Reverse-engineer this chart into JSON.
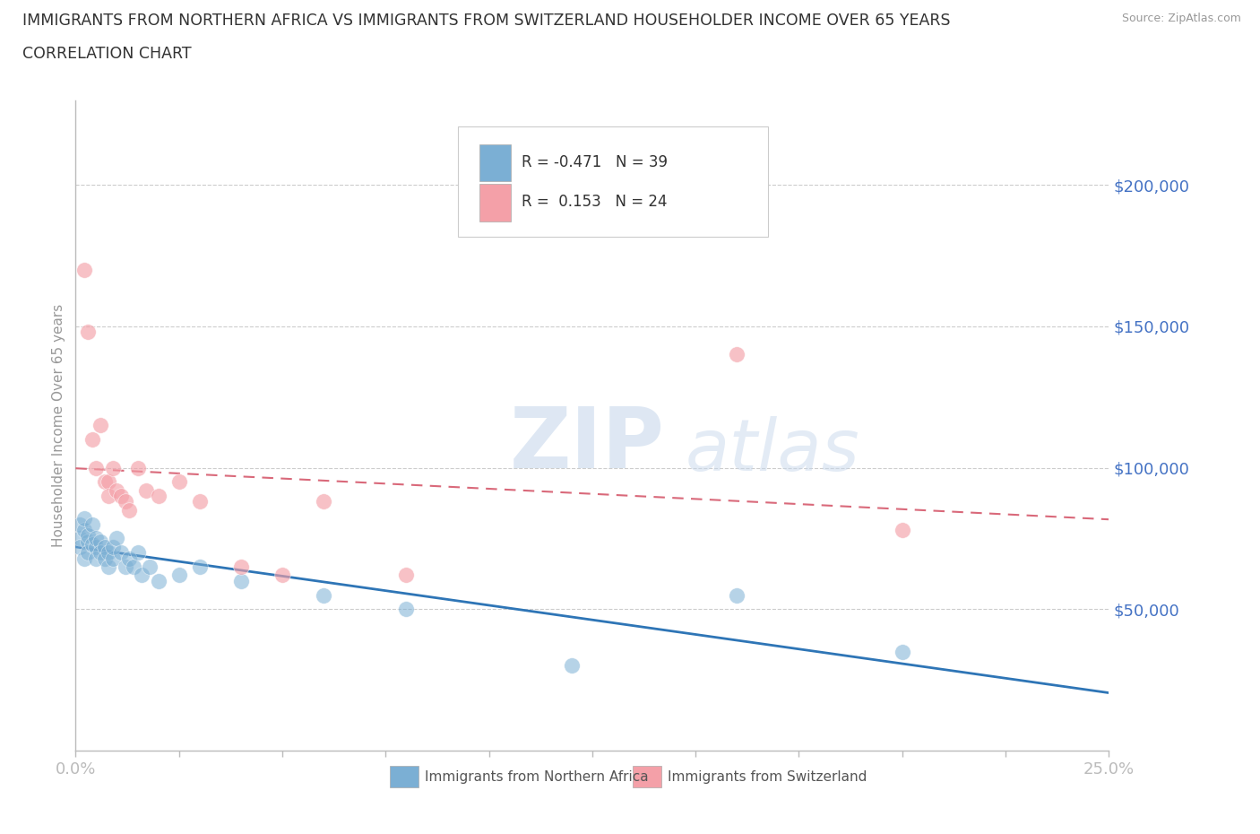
{
  "title_line1": "IMMIGRANTS FROM NORTHERN AFRICA VS IMMIGRANTS FROM SWITZERLAND HOUSEHOLDER INCOME OVER 65 YEARS",
  "title_line2": "CORRELATION CHART",
  "source_text": "Source: ZipAtlas.com",
  "ylabel": "Householder Income Over 65 years",
  "xlim": [
    0.0,
    0.25
  ],
  "ylim": [
    0,
    230000
  ],
  "ytick_values": [
    50000,
    100000,
    150000,
    200000
  ],
  "ytick_labels": [
    "$50,000",
    "$100,000",
    "$150,000",
    "$200,000"
  ],
  "color_blue": "#7BAFD4",
  "color_pink": "#F4A0A8",
  "color_trendline_blue": "#2E75B6",
  "color_trendline_pink": "#D9697A",
  "color_axis": "#BBBBBB",
  "color_grid": "#CCCCCC",
  "color_ylabel": "#999999",
  "color_yticklabels": "#4472C4",
  "color_xticklabels": "#4472C4",
  "watermark_zip": "ZIP",
  "watermark_atlas": "atlas",
  "north_africa_x": [
    0.001,
    0.001,
    0.001,
    0.002,
    0.002,
    0.002,
    0.003,
    0.003,
    0.003,
    0.004,
    0.004,
    0.005,
    0.005,
    0.005,
    0.006,
    0.006,
    0.007,
    0.007,
    0.008,
    0.008,
    0.009,
    0.009,
    0.01,
    0.011,
    0.012,
    0.013,
    0.014,
    0.015,
    0.016,
    0.018,
    0.02,
    0.025,
    0.03,
    0.04,
    0.06,
    0.08,
    0.12,
    0.16,
    0.2
  ],
  "north_africa_y": [
    75000,
    80000,
    72000,
    78000,
    68000,
    82000,
    74000,
    76000,
    70000,
    80000,
    73000,
    72000,
    75000,
    68000,
    74000,
    70000,
    72000,
    68000,
    65000,
    70000,
    68000,
    72000,
    75000,
    70000,
    65000,
    68000,
    65000,
    70000,
    62000,
    65000,
    60000,
    62000,
    65000,
    60000,
    55000,
    50000,
    30000,
    55000,
    35000
  ],
  "switzerland_x": [
    0.002,
    0.003,
    0.004,
    0.005,
    0.006,
    0.007,
    0.008,
    0.008,
    0.009,
    0.01,
    0.011,
    0.012,
    0.013,
    0.015,
    0.017,
    0.02,
    0.025,
    0.03,
    0.04,
    0.05,
    0.06,
    0.08,
    0.16,
    0.2
  ],
  "switzerland_y": [
    170000,
    148000,
    110000,
    100000,
    115000,
    95000,
    95000,
    90000,
    100000,
    92000,
    90000,
    88000,
    85000,
    100000,
    92000,
    90000,
    95000,
    88000,
    65000,
    62000,
    88000,
    62000,
    140000,
    78000
  ],
  "legend_text_r1": "R = -0.471   N = 39",
  "legend_text_r2": "R =  0.153   N = 24",
  "bottom_legend_blue": "Immigrants from Northern Africa",
  "bottom_legend_pink": "Immigrants from Switzerland"
}
